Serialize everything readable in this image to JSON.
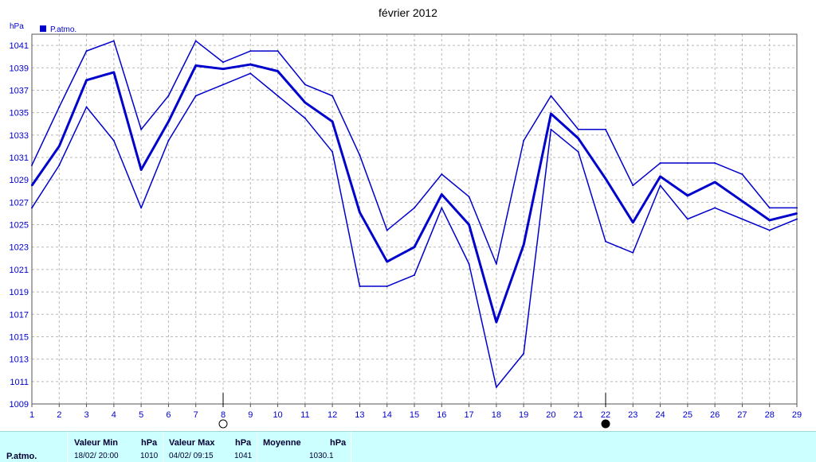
{
  "chart_data": {
    "type": "line",
    "title": "février 2012",
    "ylabel": "hPa",
    "legend": [
      {
        "label": "P.atmo.",
        "color": "#0000cc"
      }
    ],
    "legend_position": "top-left",
    "grid": true,
    "ylim": [
      1009,
      1042
    ],
    "yticks": [
      1009,
      1011,
      1013,
      1015,
      1017,
      1019,
      1021,
      1023,
      1025,
      1027,
      1029,
      1031,
      1033,
      1035,
      1037,
      1039,
      1041
    ],
    "x": [
      1,
      2,
      3,
      4,
      5,
      6,
      7,
      8,
      9,
      10,
      11,
      12,
      13,
      14,
      15,
      16,
      17,
      18,
      19,
      20,
      21,
      22,
      23,
      24,
      25,
      26,
      27,
      28,
      29
    ],
    "series": [
      {
        "role": "max",
        "values": [
          1030.3,
          1035.5,
          1040.5,
          1041.4,
          1033.5,
          1036.5,
          1041.4,
          1039.5,
          1040.5,
          1040.5,
          1037.5,
          1036.5,
          1031.2,
          1024.5,
          1026.5,
          1029.5,
          1027.5,
          1021.5,
          1032.5,
          1036.5,
          1033.5,
          1033.5,
          1028.5,
          1030.5,
          1030.5,
          1030.5,
          1029.5,
          1026.5,
          1026.5
        ]
      },
      {
        "role": "mean",
        "values": [
          1028.5,
          1032.0,
          1037.9,
          1038.6,
          1029.9,
          1034.2,
          1039.2,
          1038.9,
          1039.3,
          1038.7,
          1035.9,
          1034.2,
          1026.1,
          1021.7,
          1023.0,
          1027.7,
          1025.0,
          1016.3,
          1023.2,
          1034.9,
          1032.7,
          1029.1,
          1025.2,
          1029.3,
          1027.6,
          1028.8,
          1027.1,
          1025.4,
          1026.0
        ]
      },
      {
        "role": "min",
        "values": [
          1026.5,
          1030.3,
          1035.5,
          1032.5,
          1026.5,
          1032.5,
          1036.5,
          1037.5,
          1038.5,
          1036.5,
          1034.5,
          1031.5,
          1019.5,
          1019.5,
          1020.5,
          1026.5,
          1021.5,
          1010.5,
          1013.5,
          1033.5,
          1031.5,
          1023.5,
          1022.5,
          1028.5,
          1025.5,
          1026.5,
          1025.5,
          1024.5,
          1025.5
        ]
      }
    ],
    "line_color": "#0000cc",
    "markers": [
      {
        "x": 8,
        "symbol": "open-circle"
      },
      {
        "x": 22,
        "symbol": "filled-circle"
      }
    ]
  },
  "stats": {
    "row_label": "P.atmo.",
    "min_header": "Valeur Min",
    "min_unit_header": "hPa",
    "min_time": "18/02/  20:00",
    "min_value": "1010",
    "max_header": "Valeur Max",
    "max_unit_header": "hPa",
    "max_time": "04/02/  09:15",
    "max_value": "1041",
    "mean_header": "Moyenne",
    "mean_unit_header": "hPa",
    "mean_value": "1030.1"
  }
}
